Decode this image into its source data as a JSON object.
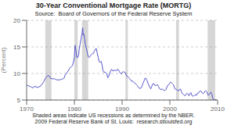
{
  "chart_data": {
    "type": "line",
    "title": "30-Year Conventional Mortgage Rate (MORTG)",
    "subtitle": "Source:  Board of Governors of the Federal Reserve System",
    "ylabel": "(Percent)",
    "annotations": [
      "Shaded areas indicate US recessions as determined by the NBER.",
      "2009 Federal Reserve Bank of St. Louis:  research.stlouisfed.org"
    ],
    "xlim": [
      1970,
      2010
    ],
    "ylim": [
      5,
      20
    ],
    "xticks": [
      1970,
      1980,
      1990,
      2000,
      2010
    ],
    "yticks": [
      5,
      10,
      15,
      20
    ],
    "grid": true,
    "color": "#5555cc",
    "recessions": [
      [
        1973.9,
        1975.2
      ],
      [
        1980.0,
        1980.7
      ],
      [
        1981.6,
        1982.9
      ],
      [
        1990.7,
        1991.2
      ],
      [
        2001.3,
        2001.9
      ],
      [
        2007.9,
        2009.5
      ]
    ],
    "x": [
      1970.0,
      1970.3,
      1970.6,
      1970.9,
      1971.0,
      1971.3,
      1971.6,
      1971.9,
      1972.0,
      1972.3,
      1972.6,
      1972.9,
      1973.0,
      1973.3,
      1973.6,
      1973.9,
      1974.0,
      1974.3,
      1974.6,
      1974.9,
      1975.0,
      1975.3,
      1975.6,
      1975.9,
      1976.0,
      1976.3,
      1976.6,
      1976.9,
      1977.0,
      1977.3,
      1977.6,
      1977.9,
      1978.0,
      1978.3,
      1978.6,
      1978.9,
      1979.0,
      1979.3,
      1979.6,
      1979.9,
      1980.0,
      1980.15,
      1980.3,
      1980.5,
      1980.7,
      1980.9,
      1981.0,
      1981.2,
      1981.4,
      1981.6,
      1981.75,
      1981.85,
      1982.0,
      1982.15,
      1982.3,
      1982.5,
      1982.7,
      1982.9,
      1983.0,
      1983.2,
      1983.4,
      1983.6,
      1983.8,
      1984.0,
      1984.2,
      1984.4,
      1984.6,
      1984.8,
      1985.0,
      1985.2,
      1985.4,
      1985.6,
      1985.8,
      1986.0,
      1986.2,
      1986.4,
      1986.6,
      1986.8,
      1987.0,
      1987.2,
      1987.4,
      1987.6,
      1987.8,
      1988.0,
      1988.2,
      1988.4,
      1988.6,
      1988.8,
      1989.0,
      1989.2,
      1989.4,
      1989.6,
      1989.8,
      1990.0,
      1990.2,
      1990.4,
      1990.6,
      1990.8,
      1991.0,
      1991.2,
      1991.4,
      1991.6,
      1991.8,
      1992.0,
      1992.2,
      1992.4,
      1992.6,
      1992.8,
      1993.0,
      1993.2,
      1993.4,
      1993.6,
      1993.8,
      1994.0,
      1994.2,
      1994.4,
      1994.6,
      1994.8,
      1995.0,
      1995.2,
      1995.4,
      1995.6,
      1995.8,
      1996.0,
      1996.2,
      1996.4,
      1996.6,
      1996.8,
      1997.0,
      1997.2,
      1997.4,
      1997.6,
      1997.8,
      1998.0,
      1998.2,
      1998.4,
      1998.6,
      1998.8,
      1999.0,
      1999.2,
      1999.4,
      1999.6,
      1999.8,
      2000.0,
      2000.2,
      2000.4,
      2000.6,
      2000.8,
      2001.0,
      2001.2,
      2001.4,
      2001.6,
      2001.8,
      2002.0,
      2002.2,
      2002.4,
      2002.6,
      2002.8,
      2003.0,
      2003.2,
      2003.4,
      2003.6,
      2003.8,
      2004.0,
      2004.2,
      2004.4,
      2004.6,
      2004.8,
      2005.0,
      2005.2,
      2005.4,
      2005.6,
      2005.8,
      2006.0,
      2006.2,
      2006.4,
      2006.6,
      2006.8,
      2007.0,
      2007.2,
      2007.4,
      2007.6,
      2007.8,
      2008.0,
      2008.2,
      2008.4,
      2008.6,
      2008.8,
      2009.0,
      2009.2,
      2009.5,
      2009.8
    ],
    "values": [
      7.8,
      7.7,
      7.6,
      7.5,
      7.4,
      7.3,
      7.5,
      7.6,
      7.4,
      7.4,
      7.5,
      7.6,
      7.8,
      8.0,
      8.5,
      9.0,
      9.2,
      9.5,
      9.6,
      9.4,
      9.1,
      9.0,
      9.0,
      9.0,
      8.9,
      8.8,
      8.8,
      8.8,
      8.8,
      8.9,
      9.0,
      9.2,
      9.6,
      10.0,
      10.3,
      10.8,
      11.0,
      11.2,
      11.5,
      12.5,
      13.0,
      15.3,
      14.5,
      13.0,
      13.0,
      13.5,
      14.5,
      15.5,
      16.5,
      17.5,
      18.6,
      17.2,
      17.4,
      16.5,
      15.5,
      14.8,
      14.0,
      13.2,
      13.0,
      13.1,
      13.4,
      13.6,
      13.8,
      13.8,
      14.2,
      14.6,
      14.7,
      13.8,
      13.0,
      12.2,
      12.1,
      12.3,
      11.6,
      10.5,
      10.2,
      10.3,
      10.1,
      9.9,
      9.2,
      9.5,
      10.0,
      10.5,
      10.8,
      10.5,
      10.5,
      10.6,
      10.6,
      10.5,
      10.8,
      10.7,
      10.4,
      10.1,
      9.9,
      10.2,
      10.3,
      10.3,
      10.2,
      9.8,
      9.5,
      9.4,
      9.2,
      9.0,
      8.8,
      8.5,
      8.6,
      8.4,
      8.2,
      8.1,
      7.9,
      7.7,
      7.4,
      7.2,
      7.2,
      7.3,
      7.7,
      8.2,
      8.6,
      9.1,
      9.1,
      8.7,
      8.2,
      7.8,
      7.4,
      7.1,
      7.6,
      8.0,
      8.1,
      7.8,
      7.7,
      7.8,
      7.9,
      7.6,
      7.2,
      7.0,
      7.0,
      7.1,
      6.9,
      6.8,
      6.8,
      7.0,
      7.5,
      7.8,
      7.9,
      8.2,
      8.4,
      8.2,
      8.0,
      7.8,
      7.2,
      7.0,
      7.0,
      6.9,
      6.7,
      6.9,
      7.1,
      6.6,
      6.3,
      6.1,
      5.9,
      5.8,
      6.1,
      6.3,
      6.1,
      5.8,
      6.2,
      6.4,
      5.9,
      5.7,
      5.8,
      5.9,
      6.0,
      5.9,
      6.3,
      6.3,
      6.6,
      6.7,
      6.6,
      6.3,
      6.2,
      6.4,
      6.7,
      6.7,
      6.5,
      5.9,
      6.0,
      6.2,
      6.5,
      6.1,
      5.3,
      5.0,
      5.1,
      5.0
    ]
  }
}
